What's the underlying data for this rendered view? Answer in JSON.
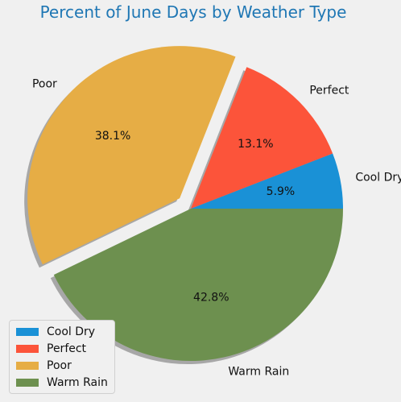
{
  "chart_data": {
    "type": "pie",
    "title": "Percent of June Days by Weather Type",
    "slices": [
      {
        "label": "Cool Dry",
        "value": 5.9,
        "pct_label": "5.9%",
        "color": "#1a91d6",
        "explode": 0
      },
      {
        "label": "Perfect",
        "value": 13.1,
        "pct_label": "13.1%",
        "color": "#fc543a",
        "explode": 0
      },
      {
        "label": "Poor",
        "value": 38.1,
        "pct_label": "38.1%",
        "color": "#e6ad45",
        "explode": 0.1
      },
      {
        "label": "Warm Rain",
        "value": 42.8,
        "pct_label": "42.8%",
        "color": "#6d904f",
        "explode": 0
      }
    ],
    "start_angle_deg": 0,
    "shadow": true,
    "legend": {
      "placement": "lower-left",
      "entries": [
        "Cool Dry",
        "Perfect",
        "Poor",
        "Warm Rain"
      ]
    }
  }
}
